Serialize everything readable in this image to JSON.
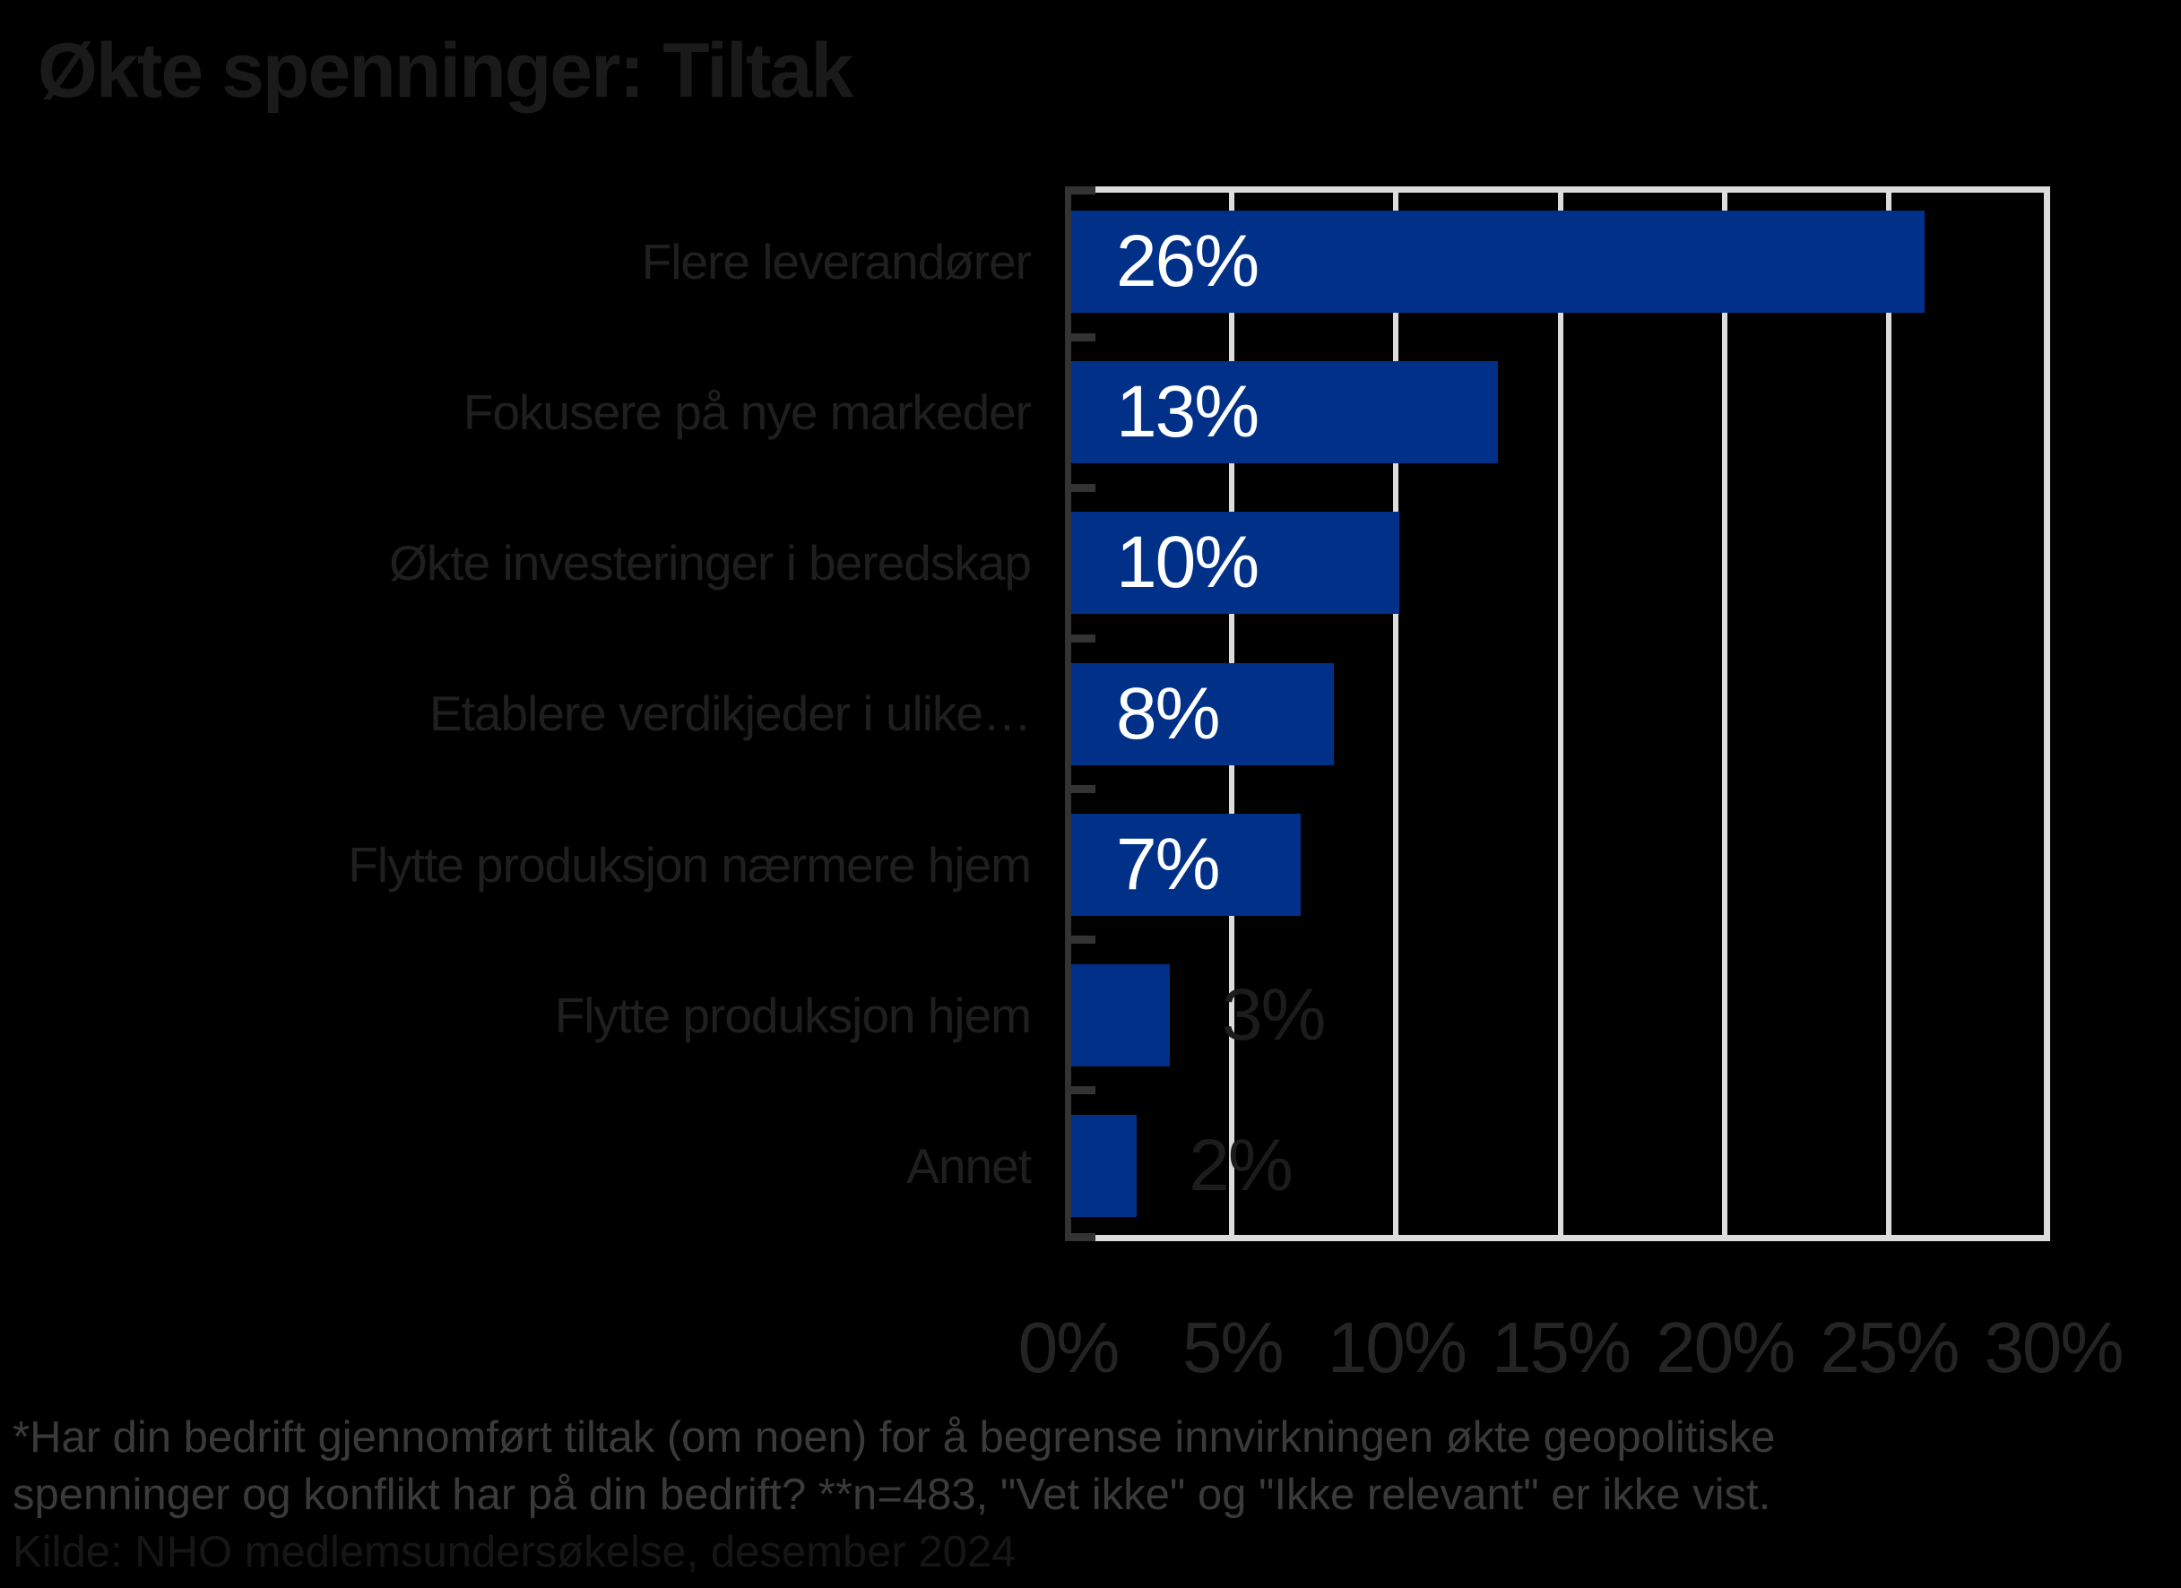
{
  "title": "Økte spenninger: Tiltak",
  "chart_data": {
    "type": "bar",
    "orientation": "horizontal",
    "title": "Økte spenninger: Tiltak",
    "categories": [
      "Flere leverandører",
      "Fokusere på nye markeder",
      "Økte investeringer i beredskap",
      "Etablere verdikjeder i ulike…",
      "Flytte produksjon nærmere hjem",
      "Flytte produksjon hjem",
      "Annet"
    ],
    "values": [
      26,
      13,
      10,
      8,
      7,
      3,
      2
    ],
    "value_labels": [
      "26%",
      "13%",
      "10%",
      "8%",
      "7%",
      "3%",
      "2%"
    ],
    "x_tick_labels": [
      "0%",
      "5%",
      "10%",
      "15%",
      "20%",
      "25%",
      "30%"
    ],
    "x_tick_values": [
      0,
      5,
      10,
      15,
      20,
      25,
      30
    ],
    "xlim": [
      0,
      30
    ],
    "grid": "vertical",
    "legend": "none",
    "bar_color": "#003087",
    "inside_label_min_value": 7
  },
  "footnote": {
    "line1": "*Har din bedrift gjennomført tiltak (om noen) for å begrense innvirkningen økte geopolitiske",
    "line2": "spenninger og konflikt har på din bedrift? **n=483, \"Vet ikke\" og \"Ikke relevant\" er ikke vist.",
    "line3": "Kilde: NHO medlemsundersøkelse, desember 2024"
  },
  "colors": {
    "background": "#000000",
    "bar": "#003087",
    "gridline": "#DCDCDC",
    "axis": "#333333",
    "title_text": "#1A1A1A",
    "category_text": "#1F1F1F",
    "x_tick_text": "#242424",
    "value_inside_text": "#FFFFFF",
    "value_outside_text": "#1C1C1C",
    "footnote_text": "#3A3A3A",
    "source_text": "#161616"
  }
}
